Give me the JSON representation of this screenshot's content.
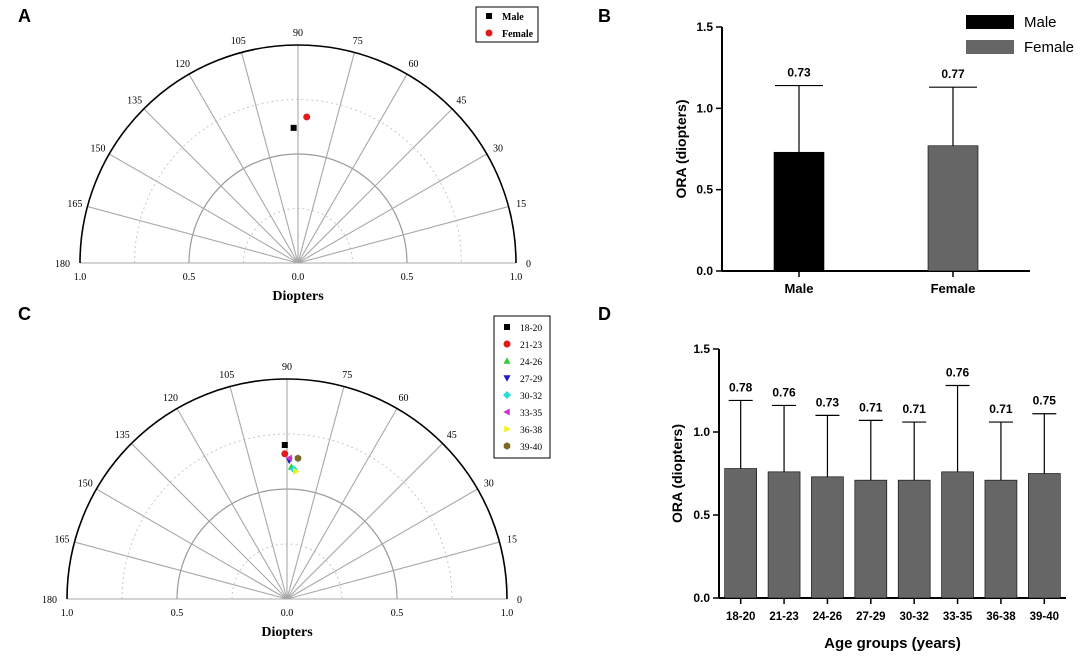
{
  "chart_data": [
    {
      "panel": "A",
      "type": "scatter",
      "subtype": "polar-half",
      "xlabel": "Diopters",
      "radial_max": 1.0,
      "radial_ticks": [
        "1.0",
        "0.5",
        "0.0",
        "0.5",
        "1.0"
      ],
      "angle_ticks": [
        "0",
        "15",
        "30",
        "45",
        "60",
        "75",
        "90",
        "105",
        "120",
        "135",
        "150",
        "165",
        "180"
      ],
      "legend": {
        "placement": "top-right",
        "entries": [
          {
            "name": "Male",
            "color": "#000000",
            "marker": "square"
          },
          {
            "name": "Female",
            "color": "#e31a1c",
            "marker": "circle"
          }
        ]
      },
      "series": [
        {
          "name": "Male",
          "x": -0.02,
          "y": 0.62
        },
        {
          "name": "Female",
          "x": 0.04,
          "y": 0.67
        }
      ]
    },
    {
      "panel": "B",
      "type": "bar",
      "categories": [
        "Male",
        "Female"
      ],
      "values": [
        0.73,
        0.77
      ],
      "errors": [
        0.41,
        0.36
      ],
      "value_labels": [
        "0.73",
        "0.77"
      ],
      "colors": [
        "#000000",
        "#666666"
      ],
      "ylabel": "ORA (diopters)",
      "ylim": [
        0,
        1.5
      ],
      "yticks": [
        "0.0",
        "0.5",
        "1.0",
        "1.5"
      ],
      "legend": {
        "placement": "top-right",
        "entries": [
          {
            "name": "Male",
            "color": "#000000"
          },
          {
            "name": "Female",
            "color": "#666666"
          }
        ]
      }
    },
    {
      "panel": "C",
      "type": "scatter",
      "subtype": "polar-half",
      "xlabel": "Diopters",
      "radial_max": 1.0,
      "radial_ticks": [
        "1.0",
        "0.5",
        "0.0",
        "0.5",
        "1.0"
      ],
      "angle_ticks": [
        "0",
        "15",
        "30",
        "45",
        "60",
        "75",
        "90",
        "105",
        "120",
        "135",
        "150",
        "165",
        "180"
      ],
      "legend": {
        "placement": "top-right",
        "entries": [
          {
            "name": "18-20",
            "color": "#000000",
            "marker": "square"
          },
          {
            "name": "21-23",
            "color": "#e31a1c",
            "marker": "circle"
          },
          {
            "name": "24-26",
            "color": "#33cc33",
            "marker": "triangle-up"
          },
          {
            "name": "27-29",
            "color": "#1a1acc",
            "marker": "triangle-down"
          },
          {
            "name": "30-32",
            "color": "#22dddd",
            "marker": "diamond"
          },
          {
            "name": "33-35",
            "color": "#cc33cc",
            "marker": "triangle-left"
          },
          {
            "name": "36-38",
            "color": "#f2f21a",
            "marker": "triangle-right"
          },
          {
            "name": "39-40",
            "color": "#7a6a22",
            "marker": "hexagon"
          }
        ]
      },
      "series": [
        {
          "name": "18-20",
          "x": -0.01,
          "y": 0.7
        },
        {
          "name": "21-23",
          "x": -0.01,
          "y": 0.66
        },
        {
          "name": "24-26",
          "x": 0.02,
          "y": 0.6
        },
        {
          "name": "27-29",
          "x": 0.01,
          "y": 0.63
        },
        {
          "name": "30-32",
          "x": 0.03,
          "y": 0.59
        },
        {
          "name": "33-35",
          "x": 0.01,
          "y": 0.64
        },
        {
          "name": "36-38",
          "x": 0.04,
          "y": 0.58
        },
        {
          "name": "39-40",
          "x": 0.05,
          "y": 0.64
        }
      ]
    },
    {
      "panel": "D",
      "type": "bar",
      "categories": [
        "18-20",
        "21-23",
        "24-26",
        "27-29",
        "30-32",
        "33-35",
        "36-38",
        "39-40"
      ],
      "values": [
        0.78,
        0.76,
        0.73,
        0.71,
        0.71,
        0.76,
        0.71,
        0.75
      ],
      "errors": [
        0.41,
        0.4,
        0.37,
        0.36,
        0.35,
        0.52,
        0.35,
        0.36
      ],
      "value_labels": [
        "0.78",
        "0.76",
        "0.73",
        "0.71",
        "0.71",
        "0.76",
        "0.71",
        "0.75"
      ],
      "color": "#666666",
      "xlabel": "Age groups (years)",
      "ylabel": "ORA (diopters)",
      "ylim": [
        0,
        1.5
      ],
      "yticks": [
        "0.0",
        "0.5",
        "1.0",
        "1.5"
      ]
    }
  ]
}
